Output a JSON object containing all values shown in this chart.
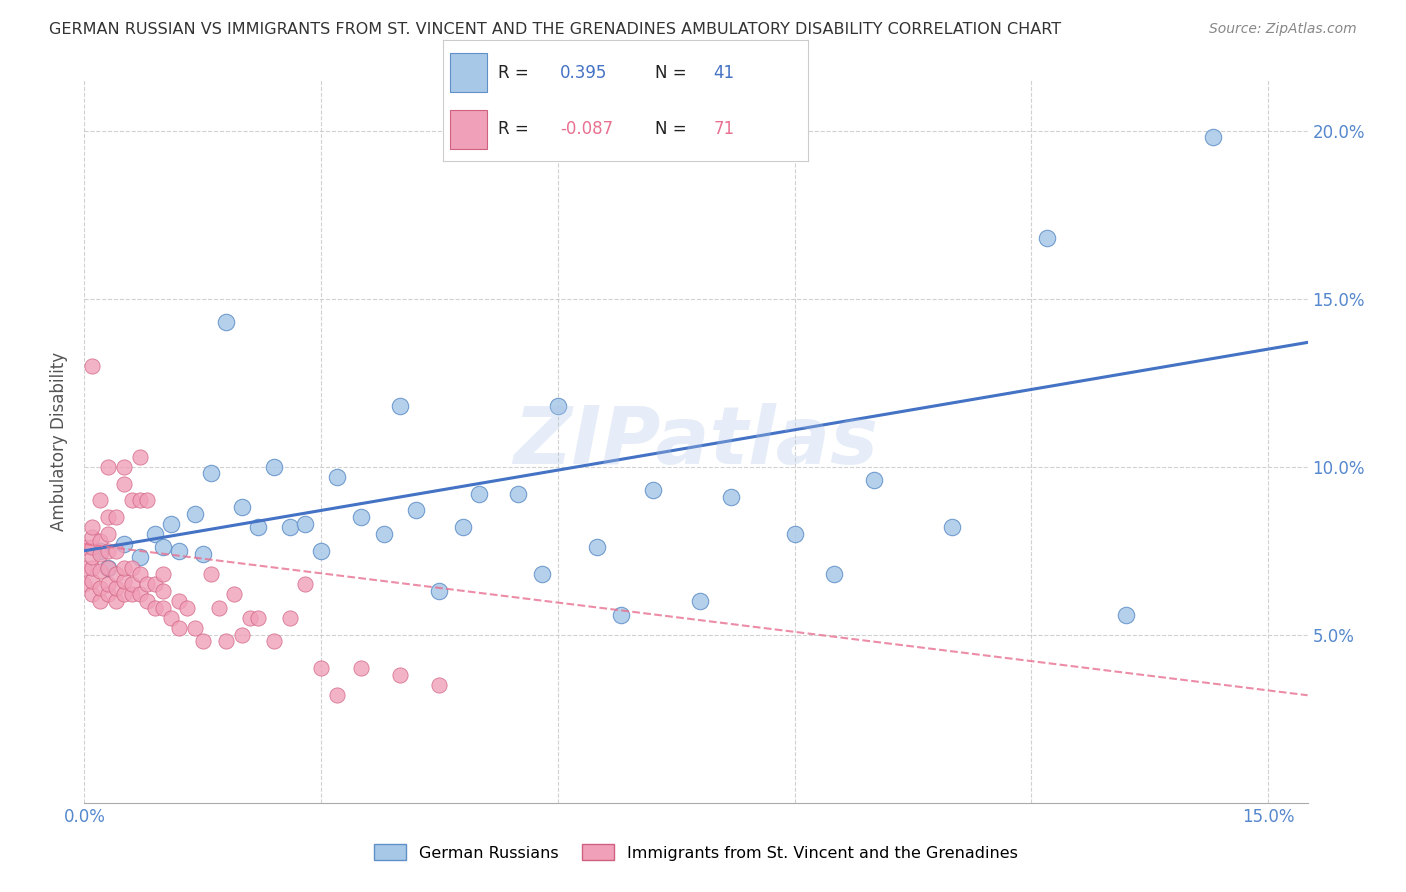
{
  "title": "GERMAN RUSSIAN VS IMMIGRANTS FROM ST. VINCENT AND THE GRENADINES AMBULATORY DISABILITY CORRELATION CHART",
  "source": "Source: ZipAtlas.com",
  "ylabel": "Ambulatory Disability",
  "xlim": [
    0.0,
    0.155
  ],
  "ylim": [
    0.0,
    0.215
  ],
  "xtick_positions": [
    0.0,
    0.15
  ],
  "xtick_labels": [
    "0.0%",
    "15.0%"
  ],
  "ytick_positions": [
    0.05,
    0.1,
    0.15,
    0.2
  ],
  "ytick_labels": [
    "5.0%",
    "10.0%",
    "15.0%",
    "20.0%"
  ],
  "blue_scatter_color": "#A8C8E8",
  "blue_scatter_edge": "#6090C8",
  "pink_scatter_color": "#F0A0B8",
  "pink_scatter_edge": "#D06080",
  "blue_line_color": "#4472C4",
  "pink_line_color": "#E87090",
  "R_blue": 0.395,
  "N_blue": 41,
  "R_pink": -0.087,
  "N_pink": 71,
  "blue_line_x0": 0.0,
  "blue_line_y0": 0.075,
  "blue_line_x1": 0.155,
  "blue_line_y1": 0.137,
  "pink_line_x0": 0.0,
  "pink_line_y0": 0.077,
  "pink_line_x1": 0.155,
  "pink_line_y1": 0.032,
  "blue_points_x": [
    0.002,
    0.003,
    0.005,
    0.007,
    0.009,
    0.01,
    0.011,
    0.012,
    0.014,
    0.015,
    0.016,
    0.018,
    0.02,
    0.022,
    0.024,
    0.026,
    0.028,
    0.03,
    0.032,
    0.035,
    0.038,
    0.04,
    0.042,
    0.045,
    0.048,
    0.05,
    0.055,
    0.058,
    0.06,
    0.065,
    0.068,
    0.072,
    0.078,
    0.082,
    0.09,
    0.095,
    0.1,
    0.11,
    0.122,
    0.132,
    0.143
  ],
  "blue_points_y": [
    0.075,
    0.07,
    0.077,
    0.073,
    0.08,
    0.076,
    0.083,
    0.075,
    0.086,
    0.074,
    0.098,
    0.143,
    0.088,
    0.082,
    0.1,
    0.082,
    0.083,
    0.075,
    0.097,
    0.085,
    0.08,
    0.118,
    0.087,
    0.063,
    0.082,
    0.092,
    0.092,
    0.068,
    0.118,
    0.076,
    0.056,
    0.093,
    0.06,
    0.091,
    0.08,
    0.068,
    0.096,
    0.082,
    0.168,
    0.056,
    0.198
  ],
  "pink_points_x": [
    0.0,
    0.0,
    0.0,
    0.001,
    0.001,
    0.001,
    0.001,
    0.001,
    0.001,
    0.001,
    0.001,
    0.002,
    0.002,
    0.002,
    0.002,
    0.002,
    0.002,
    0.003,
    0.003,
    0.003,
    0.003,
    0.003,
    0.003,
    0.003,
    0.004,
    0.004,
    0.004,
    0.004,
    0.004,
    0.005,
    0.005,
    0.005,
    0.005,
    0.005,
    0.006,
    0.006,
    0.006,
    0.006,
    0.007,
    0.007,
    0.007,
    0.007,
    0.008,
    0.008,
    0.008,
    0.009,
    0.009,
    0.01,
    0.01,
    0.01,
    0.011,
    0.012,
    0.012,
    0.013,
    0.014,
    0.015,
    0.016,
    0.017,
    0.018,
    0.019,
    0.02,
    0.021,
    0.022,
    0.024,
    0.026,
    0.028,
    0.03,
    0.032,
    0.035,
    0.04,
    0.045
  ],
  "pink_points_y": [
    0.065,
    0.07,
    0.076,
    0.062,
    0.066,
    0.07,
    0.073,
    0.076,
    0.079,
    0.082,
    0.13,
    0.06,
    0.064,
    0.069,
    0.074,
    0.078,
    0.09,
    0.062,
    0.065,
    0.07,
    0.075,
    0.08,
    0.085,
    0.1,
    0.06,
    0.064,
    0.068,
    0.075,
    0.085,
    0.062,
    0.066,
    0.07,
    0.095,
    0.1,
    0.062,
    0.065,
    0.07,
    0.09,
    0.062,
    0.068,
    0.09,
    0.103,
    0.06,
    0.065,
    0.09,
    0.058,
    0.065,
    0.058,
    0.063,
    0.068,
    0.055,
    0.052,
    0.06,
    0.058,
    0.052,
    0.048,
    0.068,
    0.058,
    0.048,
    0.062,
    0.05,
    0.055,
    0.055,
    0.048,
    0.055,
    0.065,
    0.04,
    0.032,
    0.04,
    0.038,
    0.035
  ],
  "watermark": "ZIPatlas",
  "background_color": "#ffffff",
  "grid_color": "#cccccc"
}
